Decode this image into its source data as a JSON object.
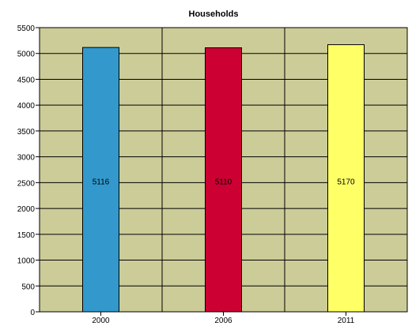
{
  "chart_data": {
    "type": "bar",
    "title": "Households",
    "categories": [
      "2000",
      "2006",
      "2011"
    ],
    "values": [
      5116,
      5110,
      5170
    ],
    "data_labels": [
      "5116",
      "5110",
      "5170"
    ],
    "bar_colors": [
      "#3399cc",
      "#cc0033",
      "#ffff66"
    ],
    "ylim": [
      0,
      5500
    ],
    "yticks": [
      0,
      500,
      1000,
      1500,
      2000,
      2500,
      3000,
      3500,
      4000,
      4500,
      5000,
      5500
    ],
    "grid": true,
    "plot_background": "#cccc99",
    "xlabel": "",
    "ylabel": ""
  }
}
